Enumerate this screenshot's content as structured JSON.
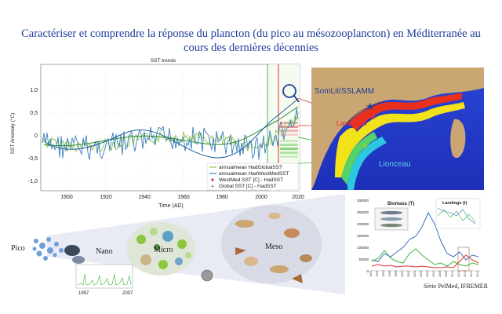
{
  "title": "Caractériser et comprendre la réponse du plancton (du pico au mésozooplancton) en Méditerranée au cours des dernières décennies",
  "sst_chart": {
    "title": "SST trends",
    "xlabel": "Time (AD)",
    "ylabel": "SST Anomaly (°C)",
    "x_ticks": [
      "1900",
      "1920",
      "1940",
      "1960",
      "1980",
      "2000",
      "2020"
    ],
    "y_ticks": [
      "1,0",
      "0,5",
      "0",
      "-0,5",
      "-1,0"
    ],
    "legend": [
      "annualmean HadGlobalSST",
      "annualmean HadWestMedSST",
      "WestMed SST [C] - HadSST",
      "Global SST [C] - HadSST"
    ],
    "colors": {
      "westmed": "#3a7fbf",
      "global": "#8cc63f",
      "westmed_marker": "#e03030",
      "global_marker": "#4a9a3a"
    }
  },
  "map": {
    "labels": [
      "SomLit/SSLAMM",
      "LaveiMed",
      "Lionceau"
    ]
  },
  "plankton": {
    "labels": [
      "Pico",
      "Nano",
      "Micro",
      "Meso"
    ],
    "inset_years": [
      "1997",
      "2007"
    ]
  },
  "fisheries": {
    "biomass_title": "Biomass (T)",
    "landings_title": "Landings (t)",
    "y_ticks": [
      "300000",
      "250000",
      "200000",
      "150000",
      "100000",
      "50000",
      "0"
    ],
    "credit": "Série PelMed, IFREMER"
  }
}
